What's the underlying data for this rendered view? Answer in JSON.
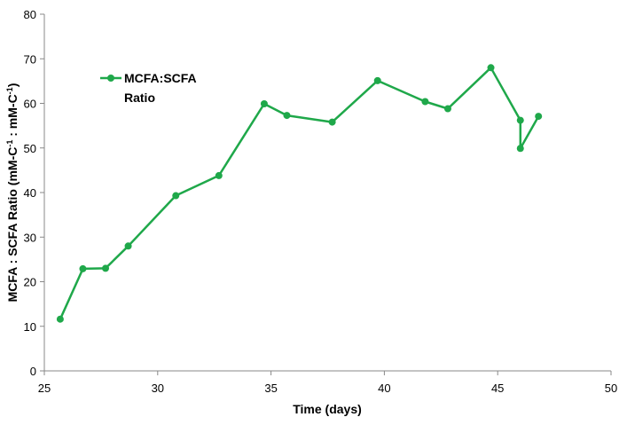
{
  "chart_data": {
    "type": "line",
    "xlabel": "Time (days)",
    "ylabel": {
      "part1": "MCFA : SCFA Ratio (mM-C",
      "sup1": "-1",
      "part2": " : mM-C",
      "sup2": "-1",
      "part3": ")"
    },
    "xlim": [
      25,
      50
    ],
    "ylim": [
      0,
      80
    ],
    "xticks": [
      25,
      30,
      35,
      40,
      45,
      50
    ],
    "yticks": [
      0,
      10,
      20,
      30,
      40,
      50,
      60,
      70,
      80
    ],
    "grid": false,
    "legend_position": "top-left",
    "series": [
      {
        "name": "MCFA:SCFA Ratio",
        "legend_lines": [
          "MCFA:SCFA",
          "Ratio"
        ],
        "color": "#1fa84a",
        "x": [
          25.7,
          26.7,
          27.7,
          28.7,
          30.8,
          32.7,
          34.7,
          35.7,
          37.7,
          39.7,
          41.8,
          42.8,
          44.7,
          46.0,
          46.0,
          46.8
        ],
        "y": [
          11.6,
          22.9,
          23.0,
          28.0,
          39.3,
          43.8,
          59.9,
          57.3,
          55.8,
          65.1,
          60.4,
          58.8,
          68.0,
          56.2,
          49.9,
          57.1
        ]
      }
    ]
  }
}
